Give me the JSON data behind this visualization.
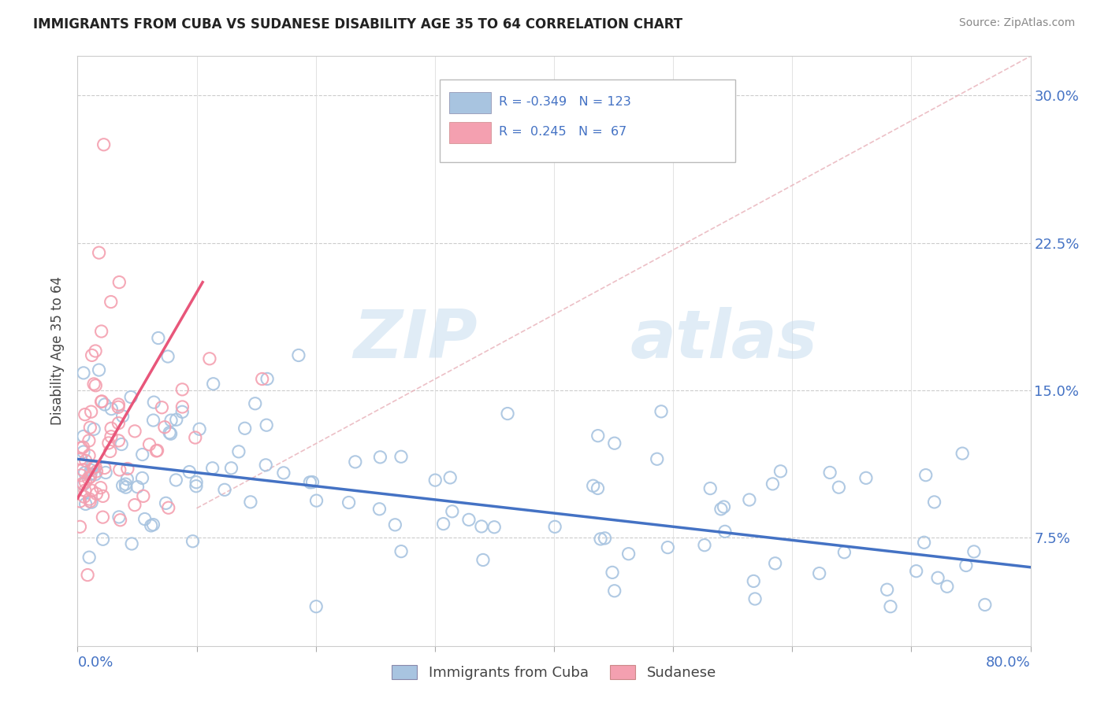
{
  "title": "IMMIGRANTS FROM CUBA VS SUDANESE DISABILITY AGE 35 TO 64 CORRELATION CHART",
  "source": "Source: ZipAtlas.com",
  "ylabel": "Disability Age 35 to 64",
  "xmin": 0.0,
  "xmax": 80.0,
  "ymin": 2.0,
  "ymax": 32.0,
  "yticks": [
    7.5,
    15.0,
    22.5,
    30.0
  ],
  "xticks": [
    0,
    10,
    20,
    30,
    40,
    50,
    60,
    70,
    80
  ],
  "blue_r": "-0.349",
  "blue_n": "123",
  "pink_r": " 0.245",
  "pink_n": " 67",
  "blue_color": "#a8c4e0",
  "pink_color": "#f4a0b0",
  "blue_trend_color": "#4472c4",
  "pink_trend_color": "#e8567a",
  "blue_legend_label": "Immigrants from Cuba",
  "pink_legend_label": "Sudanese",
  "background_color": "#ffffff",
  "blue_trend_x0": 0.0,
  "blue_trend_y0": 11.5,
  "blue_trend_x1": 80.0,
  "blue_trend_y1": 6.0,
  "pink_trend_x0": 0.0,
  "pink_trend_y0": 9.5,
  "pink_trend_x1": 10.5,
  "pink_trend_y1": 20.5,
  "diag_x0": 10.0,
  "diag_y0": 9.0,
  "diag_x1": 80.0,
  "diag_y1": 32.0
}
